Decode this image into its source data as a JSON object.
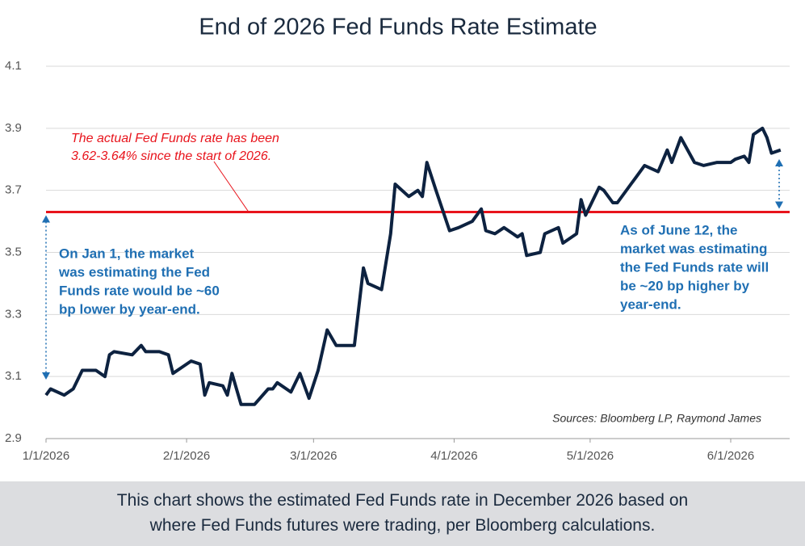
{
  "chart_data": {
    "type": "line",
    "title": "End of 2026 Fed Funds Rate Estimate",
    "x": [
      "2026-01-01",
      "2026-01-02",
      "2026-01-05",
      "2026-01-07",
      "2026-01-09",
      "2026-01-12",
      "2026-01-14",
      "2026-01-15",
      "2026-01-16",
      "2026-01-20",
      "2026-01-22",
      "2026-01-23",
      "2026-01-26",
      "2026-01-28",
      "2026-01-29",
      "2026-01-31",
      "2026-02-02",
      "2026-02-04",
      "2026-02-05",
      "2026-02-06",
      "2026-02-09",
      "2026-02-10",
      "2026-02-11",
      "2026-02-13",
      "2026-02-16",
      "2026-02-19",
      "2026-02-20",
      "2026-02-21",
      "2026-02-24",
      "2026-02-26",
      "2026-02-28",
      "2026-03-02",
      "2026-03-04",
      "2026-03-06",
      "2026-03-10",
      "2026-03-12",
      "2026-03-13",
      "2026-03-16",
      "2026-03-18",
      "2026-03-19",
      "2026-03-22",
      "2026-03-24",
      "2026-03-25",
      "2026-03-26",
      "2026-03-28",
      "2026-03-31",
      "2026-04-02",
      "2026-04-05",
      "2026-04-07",
      "2026-04-08",
      "2026-04-10",
      "2026-04-12",
      "2026-04-15",
      "2026-04-16",
      "2026-04-17",
      "2026-04-20",
      "2026-04-21",
      "2026-04-24",
      "2026-04-25",
      "2026-04-28",
      "2026-04-29",
      "2026-04-30",
      "2026-05-03",
      "2026-05-04",
      "2026-05-06",
      "2026-05-07",
      "2026-05-10",
      "2026-05-11",
      "2026-05-13",
      "2026-05-16",
      "2026-05-18",
      "2026-05-19",
      "2026-05-21",
      "2026-05-24",
      "2026-05-26",
      "2026-05-29",
      "2026-06-01",
      "2026-06-02",
      "2026-06-04",
      "2026-06-05",
      "2026-06-06",
      "2026-06-08",
      "2026-06-09",
      "2026-06-10",
      "2026-06-12"
    ],
    "series": [
      {
        "name": "End of 2026 Fed Funds Rate Estimate",
        "color": "#0d2240",
        "values": [
          3.04,
          3.06,
          3.04,
          3.06,
          3.12,
          3.12,
          3.1,
          3.17,
          3.18,
          3.17,
          3.2,
          3.18,
          3.18,
          3.17,
          3.11,
          3.13,
          3.15,
          3.14,
          3.04,
          3.08,
          3.07,
          3.04,
          3.11,
          3.01,
          3.01,
          3.06,
          3.06,
          3.08,
          3.05,
          3.11,
          3.03,
          3.12,
          3.25,
          3.2,
          3.2,
          3.45,
          3.4,
          3.38,
          3.56,
          3.72,
          3.68,
          3.7,
          3.68,
          3.79,
          3.7,
          3.57,
          3.58,
          3.6,
          3.64,
          3.57,
          3.56,
          3.58,
          3.55,
          3.56,
          3.49,
          3.5,
          3.56,
          3.58,
          3.53,
          3.56,
          3.67,
          3.62,
          3.71,
          3.7,
          3.66,
          3.66,
          3.72,
          3.74,
          3.78,
          3.76,
          3.83,
          3.79,
          3.87,
          3.79,
          3.78,
          3.79,
          3.79,
          3.8,
          3.81,
          3.79,
          3.88,
          3.9,
          3.87,
          3.82,
          3.83
        ]
      }
    ],
    "xlim": [
      "2026-01-01",
      "2026-06-14"
    ],
    "xticks": [
      {
        "value": "2026-01-01",
        "label": "1/1/2026"
      },
      {
        "value": "2026-02-01",
        "label": "2/1/2026"
      },
      {
        "value": "2026-03-01",
        "label": "3/1/2026"
      },
      {
        "value": "2026-04-01",
        "label": "4/1/2026"
      },
      {
        "value": "2026-05-01",
        "label": "5/1/2026"
      },
      {
        "value": "2026-06-01",
        "label": "6/1/2026"
      }
    ],
    "ylim": [
      2.9,
      4.1
    ],
    "yticks": [
      2.9,
      3.1,
      3.3,
      3.5,
      3.7,
      3.9,
      4.1
    ],
    "grid": true,
    "reference_line": {
      "value": 3.63,
      "color": "#e8141c"
    },
    "annotations": {
      "actual_rate": [
        "The actual Fed Funds rate has been",
        "3.62-3.64% since the start of 2026."
      ],
      "jan1": [
        "On Jan 1, the market",
        "was estimating the Fed",
        "Funds rate would be ~60",
        "bp lower by year-end."
      ],
      "june12": [
        "As of June 12, the",
        "market was estimating",
        "the Fed Funds rate will",
        "be ~20 bp higher by",
        "year-end."
      ],
      "source": "Sources: Bloomberg LP, Raymond James"
    },
    "caption": [
      "This chart shows the estimated Fed Funds rate in December 2026 based on",
      "where Fed Funds futures were trading, per Bloomberg calculations."
    ]
  }
}
